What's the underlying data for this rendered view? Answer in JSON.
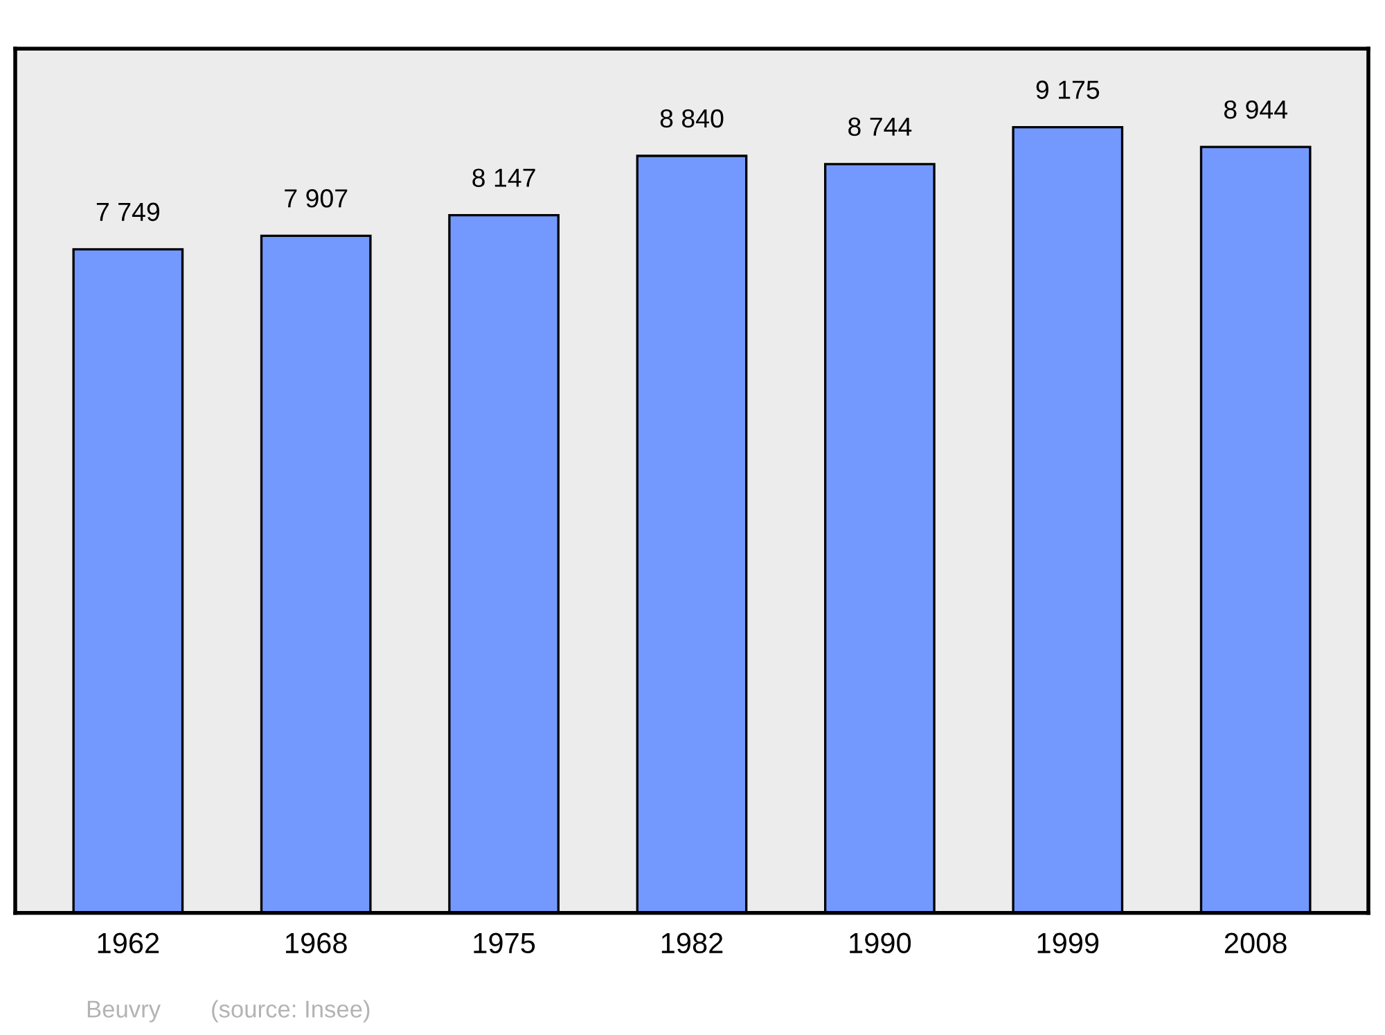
{
  "chart_data": {
    "type": "bar",
    "categories": [
      "1962",
      "1968",
      "1975",
      "1982",
      "1990",
      "1999",
      "2008"
    ],
    "values": [
      7749,
      7907,
      8147,
      8840,
      8744,
      9175,
      8944
    ],
    "value_labels": [
      "7 749",
      "7 907",
      "8 147",
      "8 840",
      "8 744",
      "9 175",
      "8 944"
    ],
    "color": "#7399ff",
    "grid": false,
    "annotations": [
      "Beuvry",
      "(source: Insee)"
    ]
  }
}
